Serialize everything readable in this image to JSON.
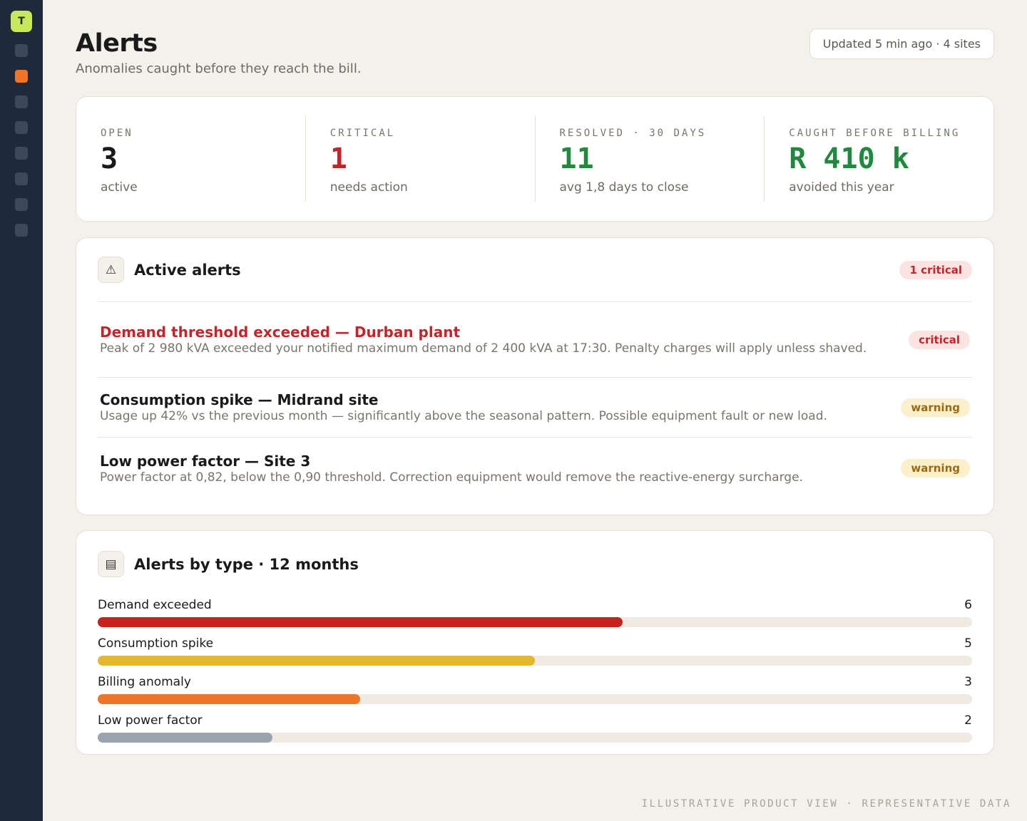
{
  "sidebar": {
    "logo_letter": "T",
    "active_index": 1,
    "item_count": 8
  },
  "header": {
    "title": "Alerts",
    "subtitle": "Anomalies caught before they reach the bill.",
    "updated": "Updated 5 min ago · 4 sites"
  },
  "stats": [
    {
      "label": "OPEN",
      "value": "3",
      "note": "active",
      "color": "#1a1a1a"
    },
    {
      "label": "CRITICAL",
      "value": "1",
      "note": "needs action",
      "color": "#c0262b"
    },
    {
      "label": "RESOLVED · 30 DAYS",
      "value": "11",
      "note": "avg 1,8 days to close",
      "color": "#21883f"
    },
    {
      "label": "CAUGHT BEFORE BILLING",
      "value": "R 410 k",
      "note": "avoided this year",
      "color": "#21883f"
    }
  ],
  "active_alerts": {
    "icon": "warning-icon",
    "title": "Active alerts",
    "badge": "1 critical",
    "items": [
      {
        "title": "Demand threshold exceeded — Durban plant",
        "description": "Peak of 2 980 kVA exceeded your notified maximum demand of 2 400 kVA at 17:30. Penalty charges will apply unless shaved.",
        "severity": "critical"
      },
      {
        "title": "Consumption spike — Midrand site",
        "description": "Usage up 42% vs the previous month — significantly above the seasonal pattern. Possible equipment fault or new load.",
        "severity": "warning"
      },
      {
        "title": "Low power factor — Site 3",
        "description": "Power factor at 0,82, below the 0,90 threshold. Correction equipment would remove the reactive-energy surcharge.",
        "severity": "warning"
      }
    ]
  },
  "alerts_by_type": {
    "icon": "list-icon",
    "title": "Alerts by type · 12 months"
  },
  "chart_data": {
    "type": "bar",
    "orientation": "horizontal",
    "categories": [
      "Demand exceeded",
      "Consumption spike",
      "Billing anomaly",
      "Low power factor"
    ],
    "values": [
      6,
      5,
      3,
      2
    ],
    "xlim": [
      0,
      10
    ],
    "colors": [
      "#c8221f",
      "#e5b72f",
      "#f07526",
      "#9ba3ae"
    ]
  },
  "footer": "ILLUSTRATIVE PRODUCT VIEW · REPRESENTATIVE DATA"
}
